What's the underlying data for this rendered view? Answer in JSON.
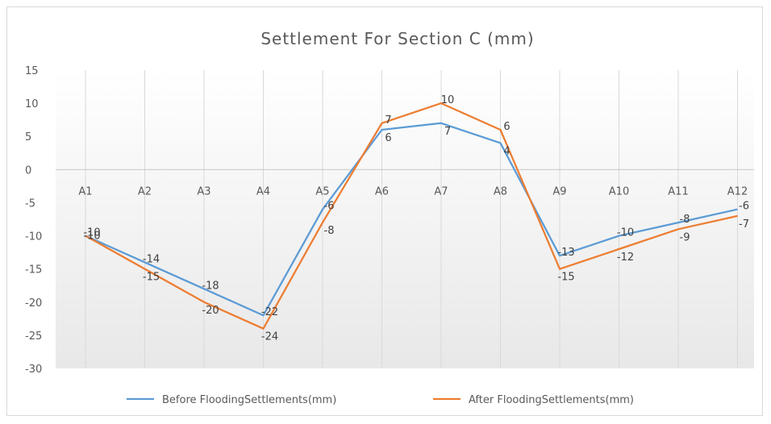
{
  "chart_data": {
    "type": "line",
    "title": "Settlement  For Section  C (mm)",
    "categories": [
      "A1",
      "A2",
      "A3",
      "A4",
      "A5",
      "A6",
      "A7",
      "A8",
      "A9",
      "A10",
      "A11",
      "A12"
    ],
    "series": [
      {
        "name": "Before FloodingSettlements(mm)",
        "color": "#5b9bd5",
        "values": [
          -10,
          -14,
          -18,
          -22,
          -6,
          6,
          7,
          4,
          -13,
          -10,
          -8,
          -6
        ]
      },
      {
        "name": "After FloodingSettlements(mm)",
        "color": "#ed7d31",
        "values": [
          -10,
          -15,
          -20,
          -24,
          -8,
          7,
          10,
          6,
          -15,
          -12,
          -9,
          -7
        ]
      }
    ],
    "ylim": [
      -30,
      15
    ],
    "yticks": [
      "15",
      "10",
      "5",
      "0",
      "-5",
      "-10",
      "-15",
      "-20",
      "-25",
      "-30"
    ],
    "grid": "vertical",
    "legend": "bottom"
  }
}
